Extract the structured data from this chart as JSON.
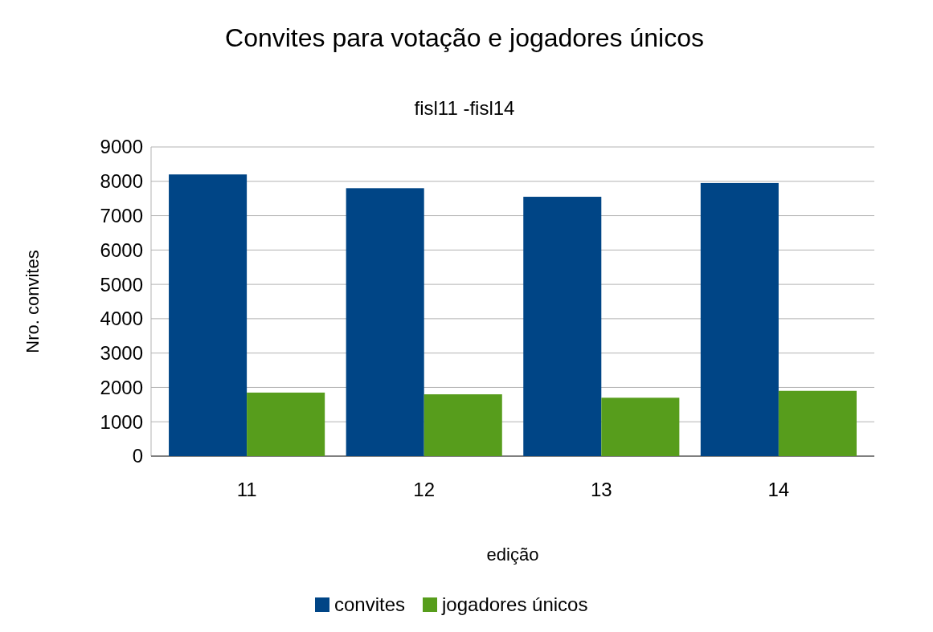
{
  "chart_data": {
    "type": "bar",
    "title": "Convites para votação e jogadores únicos",
    "subtitle": "fisl11 -fisl14",
    "xlabel": "edição",
    "ylabel": "Nro. convites",
    "categories": [
      "11",
      "12",
      "13",
      "14"
    ],
    "series": [
      {
        "name": "convites",
        "color": "#004586",
        "values": [
          8200,
          7800,
          7550,
          7950
        ]
      },
      {
        "name": "jogadores únicos",
        "color": "#579d1c",
        "values": [
          1850,
          1800,
          1700,
          1900
        ]
      }
    ],
    "ylim": [
      0,
      9000
    ],
    "yticks": [
      0,
      1000,
      2000,
      3000,
      4000,
      5000,
      6000,
      7000,
      8000,
      9000
    ],
    "grid": "y",
    "legend": "bottom"
  }
}
